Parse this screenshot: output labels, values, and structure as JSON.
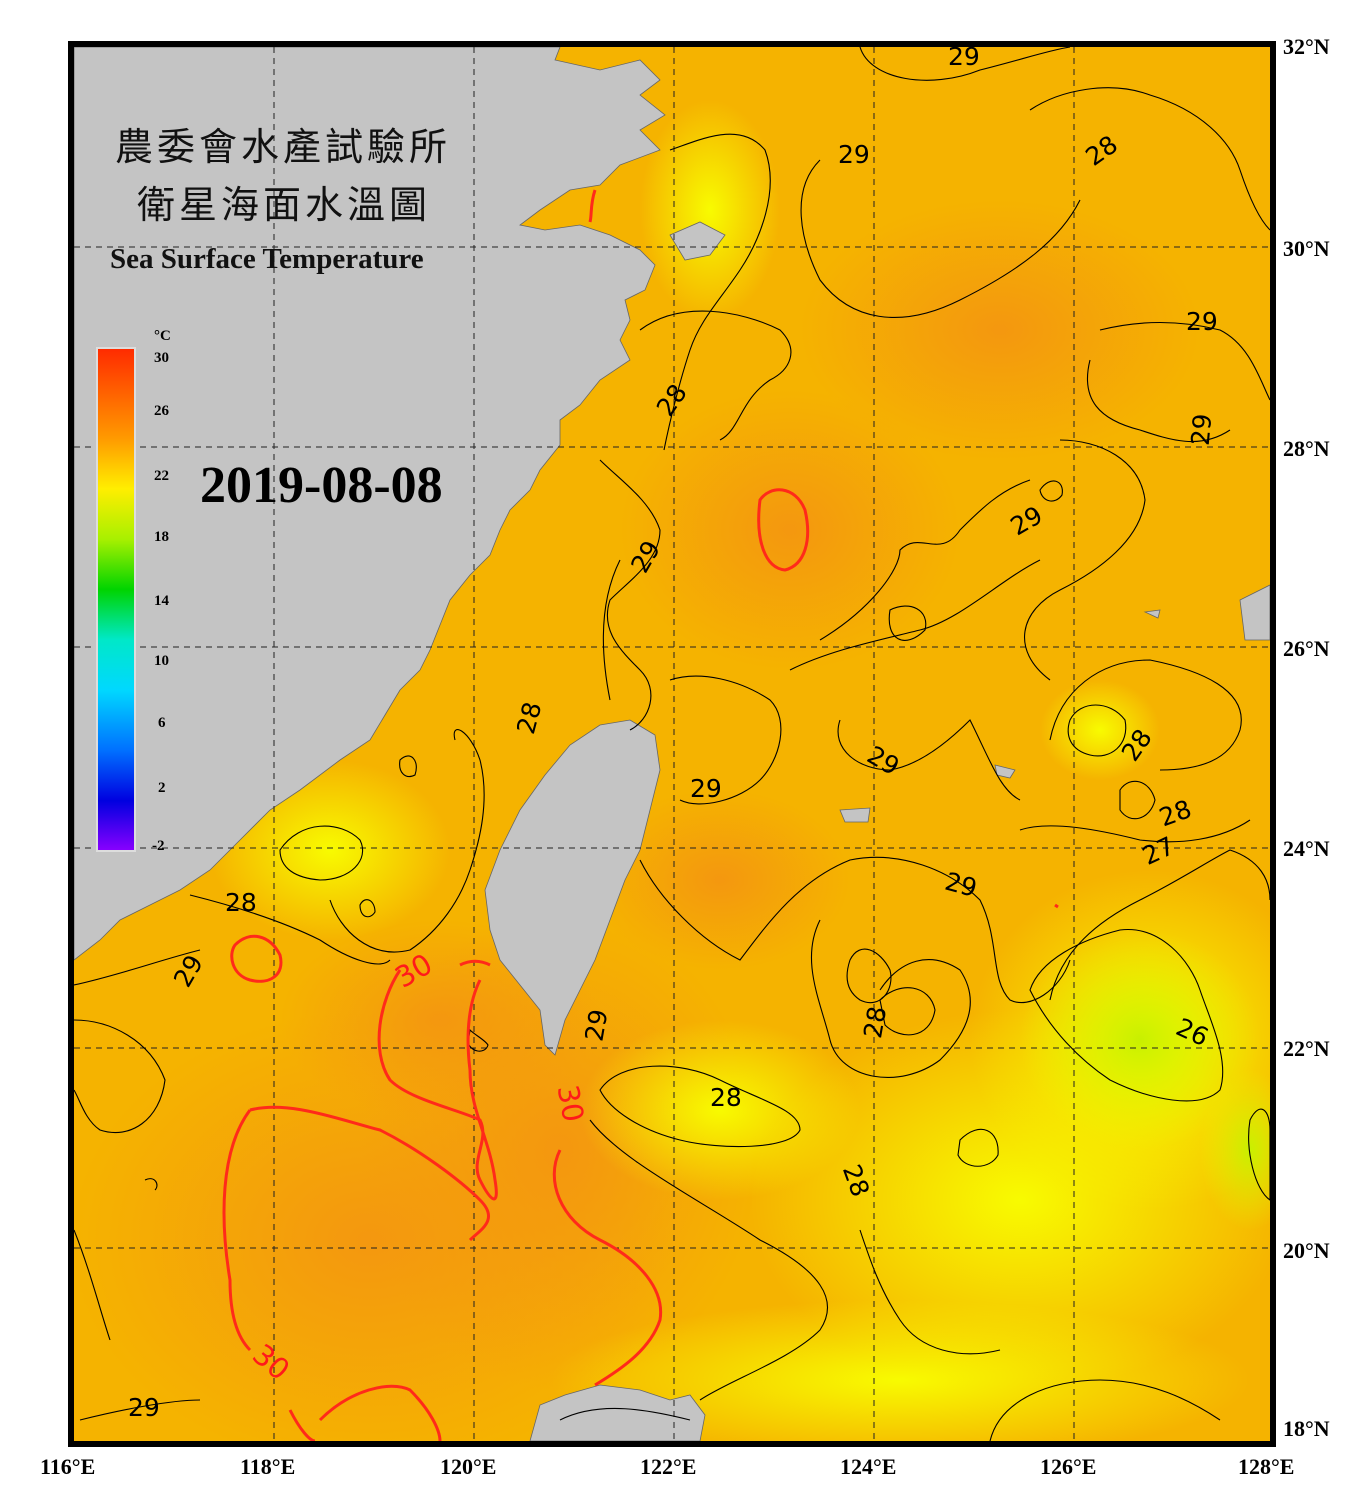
{
  "title_zh_1": "農委會水產試驗所",
  "title_zh_2": "衛星海面水溫圖",
  "title_en": "Sea Surface Temperature",
  "date": "2019-08-08",
  "colorbar": {
    "unit": "°C",
    "ticks": [
      "30",
      "26",
      "22",
      "18",
      "14",
      "10",
      "6",
      "2",
      "-2"
    ],
    "colors": [
      "#ff2a00",
      "#ff9a00",
      "#ffee00",
      "#a8f000",
      "#00d400",
      "#00e8c8",
      "#00d8ff",
      "#0070ff",
      "#0000e0",
      "#8a00ff"
    ]
  },
  "lon_labels": [
    "116°E",
    "118°E",
    "120°E",
    "122°E",
    "124°E",
    "126°E",
    "128°E"
  ],
  "lat_labels": [
    "32°N",
    "30°N",
    "28°N",
    "26°N",
    "24°N",
    "22°N",
    "20°N",
    "18°N"
  ],
  "contour_labels": [
    "29",
    "28",
    "29",
    "28",
    "29",
    "29",
    "29",
    "29",
    "28",
    "29",
    "29",
    "28",
    "28",
    "27",
    "29",
    "28",
    "29",
    "28",
    "28",
    "26",
    "28",
    "29",
    "29",
    "29"
  ],
  "red_labels": [
    "30",
    "30",
    "30"
  ],
  "colors": {
    "sea_warm": "#f5b400",
    "sea_hot": "#f49a10",
    "sea_cool": "#f6f000",
    "land": "#c4c4c4",
    "iso30": "#ff2a1a"
  }
}
